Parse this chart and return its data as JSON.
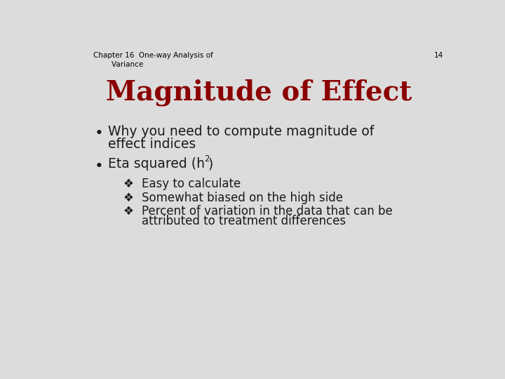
{
  "background_color": "#dcdcdc",
  "header_text": "Chapter 16  One-way Analysis of\n        Variance",
  "page_number": "14",
  "title": "Magnitude of Effect",
  "title_color": "#8B0000",
  "title_fontsize": 28,
  "header_fontsize": 7.5,
  "header_color": "#000000",
  "bullet1_line1": "Why you need to compute magnitude of",
  "bullet1_line2": "effect indices",
  "bullet2_text": "Eta squared (h",
  "bullet2_super": "2",
  "bullet2_close": ")",
  "sub_bullets": [
    "Easy to calculate",
    "Somewhat biased on the high side",
    "Percent of variation in the data that can be\nattributed to treatment differences"
  ],
  "bullet_color": "#1a1a1a",
  "bullet_fontsize": 13.5,
  "sub_bullet_fontsize": 12,
  "sub_bullet_symbol": "❖"
}
